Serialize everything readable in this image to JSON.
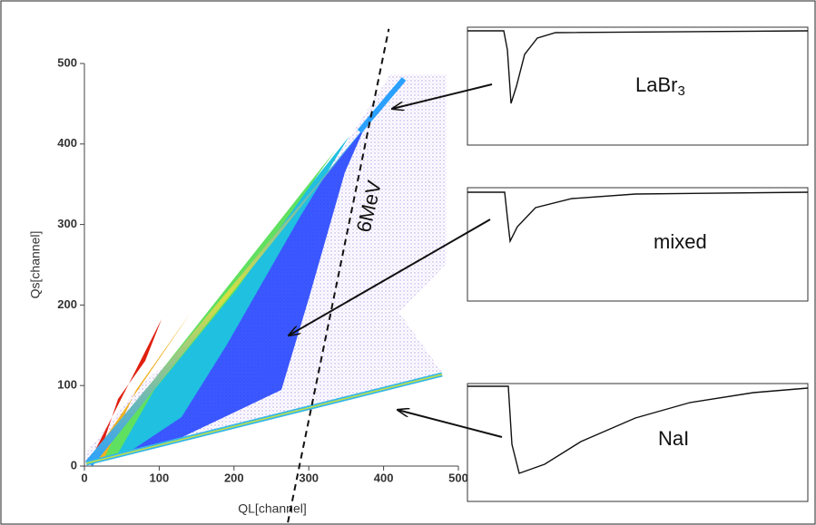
{
  "chart_data": {
    "type": "heatmap",
    "x_label": "QL[channel]",
    "y_label": "Qs[channel]",
    "xlim": [
      0,
      500
    ],
    "ylim": [
      0,
      500
    ],
    "xticks": [
      0,
      100,
      200,
      300,
      400,
      500
    ],
    "yticks": [
      0,
      100,
      200,
      300,
      400,
      500
    ],
    "annotation": "6MeV",
    "cut_line": {
      "x": [
        272,
        407
      ],
      "y": [
        -70,
        543
      ]
    },
    "insets": [
      {
        "label": "LaBr",
        "subscript": "3"
      },
      {
        "label": "mixed"
      },
      {
        "label": "NaI"
      }
    ]
  }
}
